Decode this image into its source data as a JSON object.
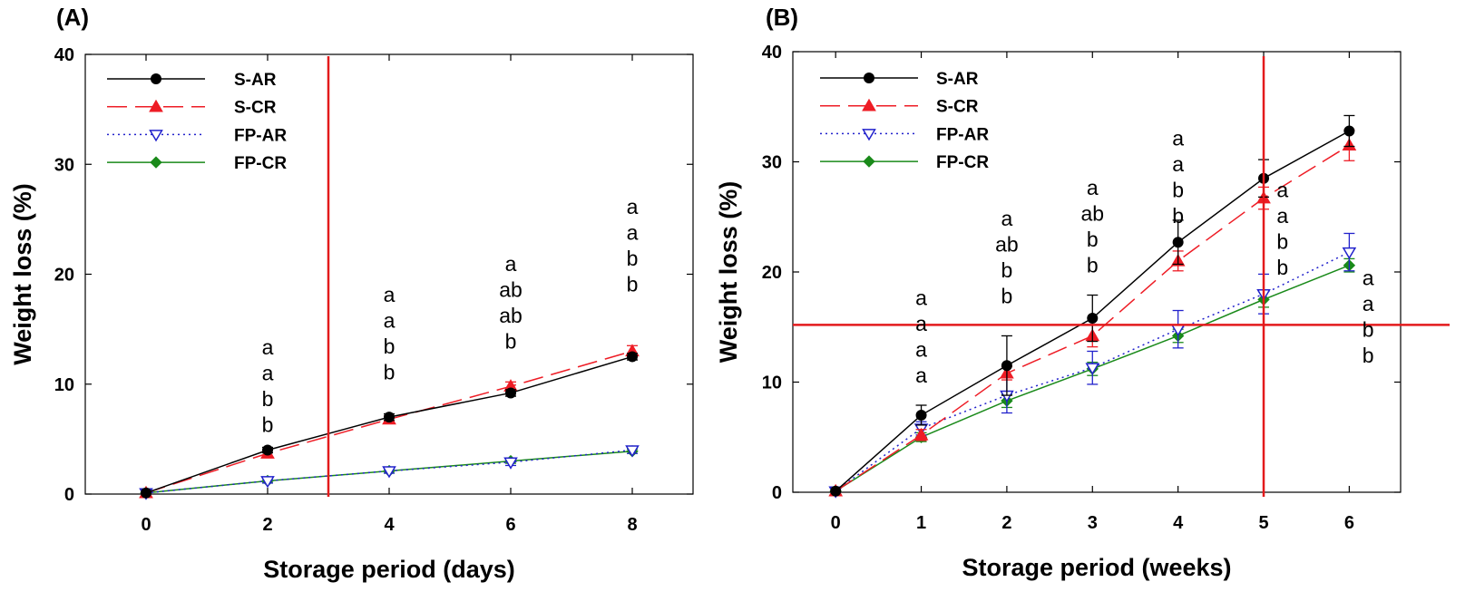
{
  "chart_data": [
    {
      "type": "line",
      "panel_label": "(A)",
      "xlabel": "Storage period (days)",
      "ylabel": "Weight loss (%)",
      "x": [
        0,
        2,
        4,
        6,
        8
      ],
      "xticks": [
        "0",
        "2",
        "4",
        "6",
        "8"
      ],
      "xlim": [
        -1,
        9
      ],
      "ylim": [
        0,
        40
      ],
      "yticks": [
        "0",
        "10",
        "20",
        "30",
        "40"
      ],
      "legend_position": "top-left",
      "series": [
        {
          "name": "S-AR",
          "color": "#000000",
          "marker": "circle",
          "dash": "solid",
          "values": [
            0.1,
            4.0,
            7.0,
            9.2,
            12.5
          ],
          "errors": [
            0,
            0.25,
            0.3,
            0.3,
            0.3
          ]
        },
        {
          "name": "S-CR",
          "color": "#ee1c25",
          "marker": "triangle",
          "dash": "longdash",
          "values": [
            0.1,
            3.7,
            6.8,
            9.8,
            13.0
          ],
          "errors": [
            0,
            0.3,
            0.3,
            0.4,
            0.5
          ]
        },
        {
          "name": "FP-AR",
          "color": "#2222cc",
          "marker": "triangle-down-open",
          "dash": "dotted",
          "values": [
            0.1,
            1.2,
            2.1,
            2.9,
            4.0
          ],
          "errors": [
            0,
            0.2,
            0.2,
            0.3,
            0.3
          ]
        },
        {
          "name": "FP-CR",
          "color": "#1a8a1a",
          "marker": "diamond",
          "dash": "solid",
          "values": [
            0.1,
            1.2,
            2.1,
            3.0,
            3.9
          ],
          "errors": [
            0,
            0.2,
            0.2,
            0.2,
            0.2
          ]
        }
      ],
      "reference_lines": [
        {
          "orientation": "vertical",
          "value": 3,
          "color": "#e31a1c"
        }
      ],
      "significance_letters": [
        {
          "x": 2,
          "y_top": 12.7,
          "letters": [
            "a",
            "a",
            "b",
            "b"
          ]
        },
        {
          "x": 4,
          "y_top": 17.5,
          "letters": [
            "a",
            "a",
            "b",
            "b"
          ]
        },
        {
          "x": 6,
          "y_top": 20.3,
          "letters": [
            "a",
            "ab",
            "ab",
            "b"
          ]
        },
        {
          "x": 8,
          "y_top": 25.5,
          "letters": [
            "a",
            "a",
            "b",
            "b"
          ]
        }
      ]
    },
    {
      "type": "line",
      "panel_label": "(B)",
      "xlabel": "Storage period (weeks)",
      "ylabel": "Weight loss (%)",
      "x": [
        0,
        1,
        2,
        3,
        4,
        5,
        6
      ],
      "xticks": [
        "0",
        "1",
        "2",
        "3",
        "4",
        "5",
        "6"
      ],
      "xlim": [
        -0.5,
        6.6
      ],
      "ylim": [
        0,
        40
      ],
      "yticks": [
        "0",
        "10",
        "20",
        "30",
        "40"
      ],
      "legend_position": "top-left",
      "series": [
        {
          "name": "S-AR",
          "color": "#000000",
          "marker": "circle",
          "dash": "solid",
          "values": [
            0.1,
            7.0,
            11.5,
            15.8,
            22.7,
            28.5,
            32.8
          ],
          "errors": [
            0,
            0.9,
            2.7,
            2.1,
            2.0,
            1.7,
            1.4
          ]
        },
        {
          "name": "S-CR",
          "color": "#ee1c25",
          "marker": "triangle",
          "dash": "longdash",
          "values": [
            0.1,
            5.2,
            10.8,
            14.2,
            21.0,
            26.7,
            31.5
          ],
          "errors": [
            0,
            0.5,
            0.6,
            1.0,
            0.9,
            1.0,
            1.4
          ]
        },
        {
          "name": "FP-AR",
          "color": "#2222cc",
          "marker": "triangle-down-open",
          "dash": "dotted",
          "values": [
            0.1,
            5.8,
            8.8,
            11.3,
            14.8,
            18.0,
            21.8
          ],
          "errors": [
            0,
            0.6,
            1.6,
            1.5,
            1.7,
            1.8,
            1.7
          ]
        },
        {
          "name": "FP-CR",
          "color": "#1a8a1a",
          "marker": "diamond",
          "dash": "solid",
          "values": [
            0.1,
            5.0,
            8.3,
            11.2,
            14.2,
            17.5,
            20.6
          ],
          "errors": [
            0,
            0.4,
            0.6,
            0.6,
            0.6,
            0.7,
            0.6
          ]
        }
      ],
      "reference_lines": [
        {
          "orientation": "vertical",
          "value": 5,
          "color": "#e31a1c"
        },
        {
          "orientation": "horizontal",
          "value": 15.2,
          "color": "#e31a1c"
        }
      ],
      "significance_letters": [
        {
          "x": 1,
          "y_top": 17.0,
          "letters": [
            "a",
            "a",
            "a",
            "a"
          ]
        },
        {
          "x": 2,
          "y_top": 24.2,
          "letters": [
            "a",
            "ab",
            "b",
            "b"
          ]
        },
        {
          "x": 3,
          "y_top": 27.0,
          "letters": [
            "a",
            "ab",
            "b",
            "b"
          ]
        },
        {
          "x": 4,
          "y_top": 31.5,
          "letters": [
            "a",
            "a",
            "b",
            "b"
          ]
        },
        {
          "x": 5.22,
          "y_top": 26.8,
          "letters": [
            "a",
            "a",
            "b",
            "b"
          ]
        },
        {
          "x": 6.22,
          "y_top": 18.8,
          "letters": [
            "a",
            "a",
            "b",
            "b"
          ]
        }
      ]
    }
  ]
}
